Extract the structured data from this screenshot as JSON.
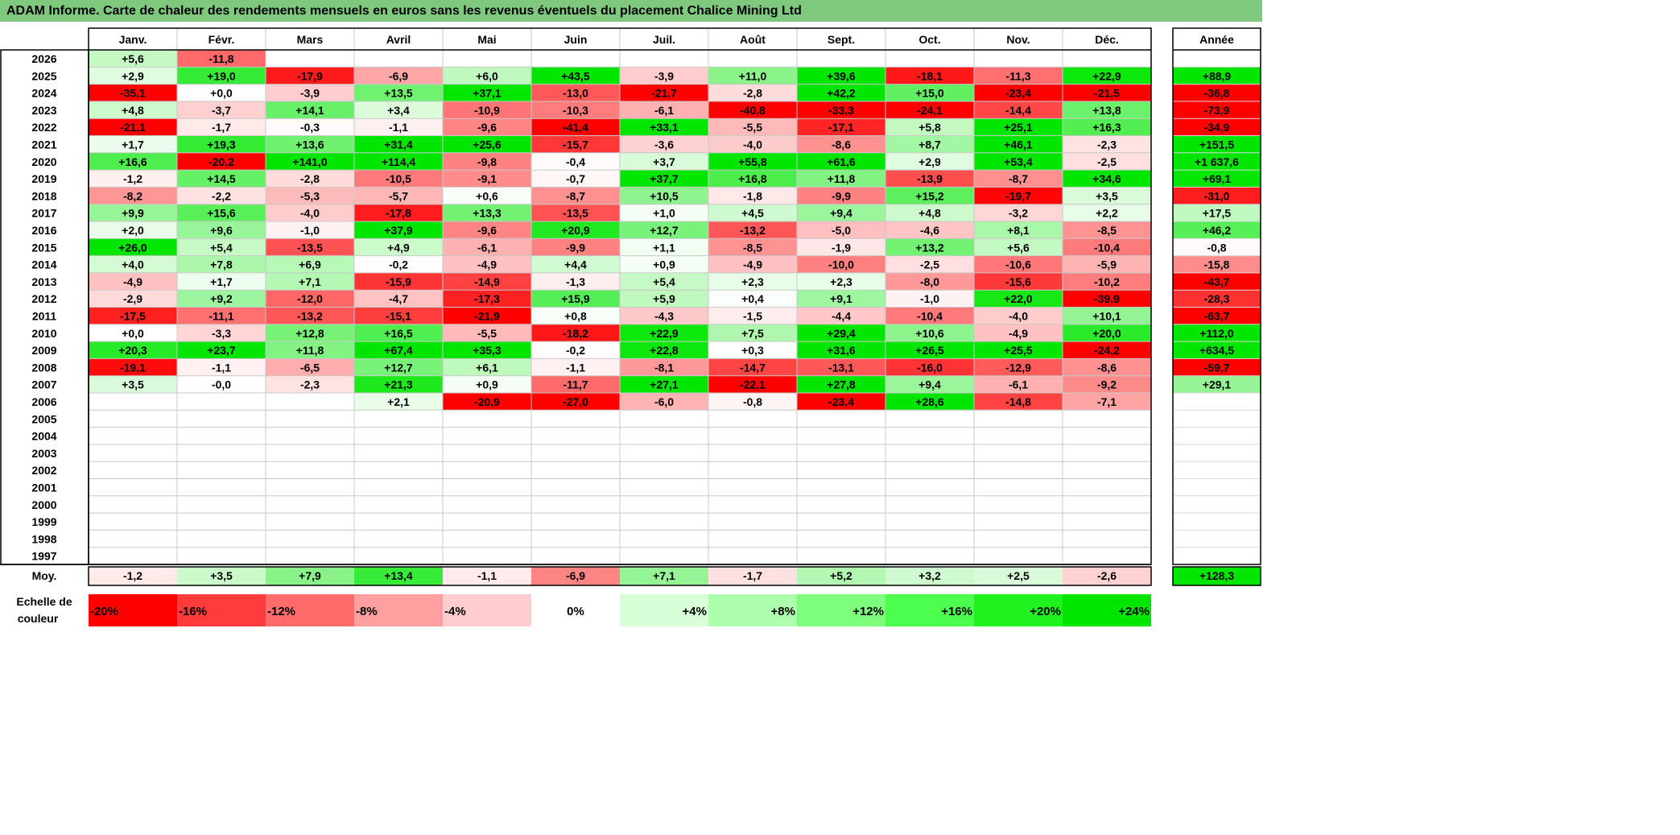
{
  "title": "ADAM Informe. Carte de chaleur des rendements mensuels en euros sans les revenus éventuels du placement Chalice Mining Ltd",
  "chart_data": {
    "type": "heatmap",
    "columns": [
      "Janv.",
      "Févr.",
      "Mars",
      "Avril",
      "Mai",
      "Juin",
      "Juil.",
      "Août",
      "Sept.",
      "Oct.",
      "Nov.",
      "Déc."
    ],
    "year_column_label": "Année",
    "average_label": "Moy.",
    "rows": [
      {
        "year": "2026",
        "months": [
          "+5,6",
          "-11,8",
          null,
          null,
          null,
          null,
          null,
          null,
          null,
          null,
          null,
          null
        ],
        "annual": null
      },
      {
        "year": "2025",
        "months": [
          "+2,9",
          "+19,0",
          "-17,9",
          "-6,9",
          "+6,0",
          "+43,5",
          "-3,9",
          "+11,0",
          "+39,6",
          "-18,1",
          "-11,3",
          "+22,9"
        ],
        "annual": "+88,9"
      },
      {
        "year": "2024",
        "months": [
          "-35,1",
          "+0,0",
          "-3,9",
          "+13,5",
          "+37,1",
          "-13,0",
          "-21,7",
          "-2,8",
          "+42,2",
          "+15,0",
          "-23,4",
          "-21,5"
        ],
        "annual": "-36,8"
      },
      {
        "year": "2023",
        "months": [
          "+4,8",
          "-3,7",
          "+14,1",
          "+3,4",
          "-10,9",
          "-10,3",
          "-6,1",
          "-40,8",
          "-33,3",
          "-24,1",
          "-14,4",
          "+13,8"
        ],
        "annual": "-73,9"
      },
      {
        "year": "2022",
        "months": [
          "-21,1",
          "-1,7",
          "-0,3",
          "-1,1",
          "-9,6",
          "-41,4",
          "+33,1",
          "-5,5",
          "-17,1",
          "+5,8",
          "+25,1",
          "+16,3"
        ],
        "annual": "-34,9"
      },
      {
        "year": "2021",
        "months": [
          "+1,7",
          "+19,3",
          "+13,6",
          "+31,4",
          "+25,6",
          "-15,7",
          "-3,6",
          "-4,0",
          "-8,6",
          "+8,7",
          "+46,1",
          "-2,3"
        ],
        "annual": "+151,5"
      },
      {
        "year": "2020",
        "months": [
          "+16,6",
          "-20,2",
          "+141,0",
          "+114,4",
          "-9,8",
          "-0,4",
          "+3,7",
          "+55,8",
          "+61,6",
          "+2,9",
          "+53,4",
          "-2,5"
        ],
        "annual": "+1 637,6"
      },
      {
        "year": "2019",
        "months": [
          "-1,2",
          "+14,5",
          "-2,8",
          "-10,5",
          "-9,1",
          "-0,7",
          "+37,7",
          "+16,8",
          "+11,8",
          "-13,9",
          "-8,7",
          "+34,6"
        ],
        "annual": "+69,1"
      },
      {
        "year": "2018",
        "months": [
          "-8,2",
          "-2,2",
          "-5,3",
          "-5,7",
          "+0,6",
          "-8,7",
          "+10,5",
          "-1,8",
          "-9,9",
          "+15,2",
          "-19,7",
          "+3,5"
        ],
        "annual": "-31,0"
      },
      {
        "year": "2017",
        "months": [
          "+9,9",
          "+15,6",
          "-4,0",
          "-17,8",
          "+13,3",
          "-13,5",
          "+1,0",
          "+4,5",
          "+9,4",
          "+4,8",
          "-3,2",
          "+2,2"
        ],
        "annual": "+17,5"
      },
      {
        "year": "2016",
        "months": [
          "+2,0",
          "+9,6",
          "-1,0",
          "+37,9",
          "-9,6",
          "+20,9",
          "+12,7",
          "-13,2",
          "-5,0",
          "-4,6",
          "+8,1",
          "-8,5"
        ],
        "annual": "+46,2"
      },
      {
        "year": "2015",
        "months": [
          "+26,0",
          "+5,4",
          "-13,5",
          "+4,9",
          "-6,1",
          "-9,9",
          "+1,1",
          "-8,5",
          "-1,9",
          "+13,2",
          "+5,6",
          "-10,4"
        ],
        "annual": "-0,8"
      },
      {
        "year": "2014",
        "months": [
          "+4,0",
          "+7,8",
          "+6,9",
          "-0,2",
          "-4,9",
          "+4,4",
          "+0,9",
          "-4,9",
          "-10,0",
          "-2,5",
          "-10,6",
          "-5,9"
        ],
        "annual": "-15,8"
      },
      {
        "year": "2013",
        "months": [
          "-4,9",
          "+1,7",
          "+7,1",
          "-15,9",
          "-14,9",
          "-1,3",
          "+5,4",
          "+2,3",
          "+2,3",
          "-8,0",
          "-15,6",
          "-10,2"
        ],
        "annual": "-43,7"
      },
      {
        "year": "2012",
        "months": [
          "-2,9",
          "+9,2",
          "-12,0",
          "-4,7",
          "-17,3",
          "+15,9",
          "+5,9",
          "+0,4",
          "+9,1",
          "-1,0",
          "+22,0",
          "-39,9"
        ],
        "annual": "-28,3"
      },
      {
        "year": "2011",
        "months": [
          "-17,5",
          "-11,1",
          "-13,2",
          "-15,1",
          "-21,9",
          "+0,8",
          "-4,3",
          "-1,5",
          "-4,4",
          "-10,4",
          "-4,0",
          "+10,1"
        ],
        "annual": "-63,7"
      },
      {
        "year": "2010",
        "months": [
          "+0,0",
          "-3,3",
          "+12,8",
          "+16,5",
          "-5,5",
          "-18,2",
          "+22,9",
          "+7,5",
          "+29,4",
          "+10,6",
          "-4,9",
          "+20,0"
        ],
        "annual": "+112,0"
      },
      {
        "year": "2009",
        "months": [
          "+20,3",
          "+23,7",
          "+11,8",
          "+67,4",
          "+35,3",
          "-0,2",
          "+22,8",
          "+0,3",
          "+31,6",
          "+26,5",
          "+25,5",
          "-24,2"
        ],
        "annual": "+634,5"
      },
      {
        "year": "2008",
        "months": [
          "-19,1",
          "-1,1",
          "-6,5",
          "+12,7",
          "+6,1",
          "-1,1",
          "-8,1",
          "-14,7",
          "-13,1",
          "-16,0",
          "-12,9",
          "-8,6"
        ],
        "annual": "-59,7"
      },
      {
        "year": "2007",
        "months": [
          "+3,5",
          "-0,0",
          "-2,3",
          "+21,3",
          "+0,9",
          "-11,7",
          "+27,1",
          "-22,1",
          "+27,8",
          "+9,4",
          "-6,1",
          "-9,2"
        ],
        "annual": "+29,1"
      },
      {
        "year": "2006",
        "months": [
          null,
          null,
          null,
          "+2,1",
          "-20,9",
          "-27,0",
          "-6,0",
          "-0,8",
          "-23,4",
          "+28,6",
          "-14,8",
          "-7,1"
        ],
        "annual": null
      },
      {
        "year": "2005",
        "months": [
          null,
          null,
          null,
          null,
          null,
          null,
          null,
          null,
          null,
          null,
          null,
          null
        ],
        "annual": null
      },
      {
        "year": "2004",
        "months": [
          null,
          null,
          null,
          null,
          null,
          null,
          null,
          null,
          null,
          null,
          null,
          null
        ],
        "annual": null
      },
      {
        "year": "2003",
        "months": [
          null,
          null,
          null,
          null,
          null,
          null,
          null,
          null,
          null,
          null,
          null,
          null
        ],
        "annual": null
      },
      {
        "year": "2002",
        "months": [
          null,
          null,
          null,
          null,
          null,
          null,
          null,
          null,
          null,
          null,
          null,
          null
        ],
        "annual": null
      },
      {
        "year": "2001",
        "months": [
          null,
          null,
          null,
          null,
          null,
          null,
          null,
          null,
          null,
          null,
          null,
          null
        ],
        "annual": null
      },
      {
        "year": "2000",
        "months": [
          null,
          null,
          null,
          null,
          null,
          null,
          null,
          null,
          null,
          null,
          null,
          null
        ],
        "annual": null
      },
      {
        "year": "1999",
        "months": [
          null,
          null,
          null,
          null,
          null,
          null,
          null,
          null,
          null,
          null,
          null,
          null
        ],
        "annual": null
      },
      {
        "year": "1998",
        "months": [
          null,
          null,
          null,
          null,
          null,
          null,
          null,
          null,
          null,
          null,
          null,
          null
        ],
        "annual": null
      },
      {
        "year": "1997",
        "months": [
          null,
          null,
          null,
          null,
          null,
          null,
          null,
          null,
          null,
          null,
          null,
          null
        ],
        "annual": null
      }
    ],
    "averages": [
      "-1,2",
      "+3,5",
      "+7,9",
      "+13,4",
      "-1,1",
      "-6,9",
      "+7,1",
      "-1,7",
      "+5,2",
      "+3,2",
      "+2,5",
      "-2,6"
    ],
    "average_annual": "+128,3",
    "scale_label": [
      "Echelle de",
      "couleur"
    ],
    "scale": [
      "-20%",
      "-16%",
      "-12%",
      "-8%",
      "-4%",
      "0%",
      "+4%",
      "+8%",
      "+12%",
      "+16%",
      "+20%",
      "+24%"
    ],
    "scale_colors": [
      "#ff0000",
      "#ff3b3b",
      "#ff6b6b",
      "#ff9f9f",
      "#ffcdcd",
      "#ffffff",
      "#d9ffd9",
      "#adffad",
      "#7dff7d",
      "#4dff4d",
      "#1ff21f",
      "#00e600"
    ],
    "colors": {
      "negative_max": "#ff0000",
      "positive_max": "#00e600",
      "neutral": "#ffffff",
      "title_band": "#7fc97f"
    }
  }
}
